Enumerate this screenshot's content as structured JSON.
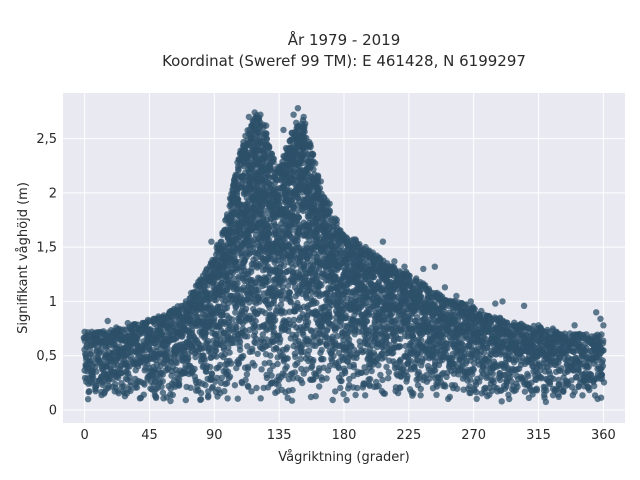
{
  "chart_data": {
    "type": "scatter",
    "title_lines": [
      "År 1979 - 2019",
      "Koordinat (Sweref 99 TM): E 461428, N 6199297"
    ],
    "xlabel": "Vågriktning (grader)",
    "ylabel": "Signifikant våghöjd (m)",
    "xlim": [
      -15,
      375
    ],
    "ylim": [
      -0.12,
      2.92
    ],
    "xticks": [
      0,
      45,
      90,
      135,
      180,
      225,
      270,
      315,
      360
    ],
    "xtick_labels": [
      "0",
      "45",
      "90",
      "135",
      "180",
      "225",
      "270",
      "315",
      "360"
    ],
    "yticks": [
      0,
      0.5,
      1,
      1.5,
      2,
      2.5
    ],
    "ytick_labels": [
      "0",
      "0,5",
      "1",
      "1,5",
      "2",
      "2,5"
    ],
    "grid": true,
    "marker_color": "#2e5069",
    "plot_background": "#e8e9f1",
    "envelope": {
      "x": [
        0,
        10,
        20,
        30,
        40,
        50,
        60,
        70,
        80,
        90,
        95,
        100,
        105,
        110,
        115,
        120,
        125,
        130,
        135,
        140,
        145,
        150,
        155,
        160,
        165,
        170,
        180,
        190,
        200,
        210,
        220,
        230,
        240,
        250,
        260,
        270,
        280,
        290,
        300,
        310,
        320,
        330,
        340,
        350,
        360
      ],
      "upper_y": [
        0.72,
        0.72,
        0.74,
        0.78,
        0.8,
        0.85,
        0.92,
        1.0,
        1.2,
        1.45,
        1.6,
        1.85,
        2.2,
        2.5,
        2.65,
        2.72,
        2.6,
        2.35,
        2.25,
        2.45,
        2.6,
        2.75,
        2.55,
        2.3,
        2.05,
        1.85,
        1.62,
        1.55,
        1.45,
        1.35,
        1.3,
        1.22,
        1.1,
        1.05,
        1.0,
        0.95,
        0.88,
        0.84,
        0.8,
        0.78,
        0.75,
        0.72,
        0.7,
        0.7,
        0.72
      ]
    },
    "outliers": [
      [
        0,
        0.72
      ],
      [
        5,
        0.72
      ],
      [
        8,
        0.7
      ],
      [
        16,
        0.82
      ],
      [
        22,
        0.76
      ],
      [
        30,
        0.8
      ],
      [
        35,
        0.79
      ],
      [
        44,
        0.83
      ],
      [
        48,
        0.84
      ],
      [
        55,
        0.87
      ],
      [
        62,
        0.93
      ],
      [
        88,
        1.55
      ],
      [
        92,
        1.52
      ],
      [
        100,
        1.72
      ],
      [
        104,
        2.1
      ],
      [
        114,
        2.7
      ],
      [
        118,
        2.74
      ],
      [
        122,
        2.72
      ],
      [
        126,
        2.62
      ],
      [
        138,
        2.58
      ],
      [
        145,
        2.72
      ],
      [
        148,
        2.78
      ],
      [
        152,
        2.7
      ],
      [
        162,
        2.15
      ],
      [
        170,
        1.9
      ],
      [
        175,
        1.75
      ],
      [
        182,
        1.58
      ],
      [
        188,
        1.57
      ],
      [
        195,
        1.5
      ],
      [
        200,
        1.45
      ],
      [
        207,
        1.55
      ],
      [
        215,
        1.37
      ],
      [
        222,
        1.32
      ],
      [
        235,
        1.3
      ],
      [
        243,
        1.32
      ],
      [
        250,
        1.13
      ],
      [
        258,
        1.05
      ],
      [
        268,
        1.0
      ],
      [
        285,
        0.98
      ],
      [
        290,
        1.0
      ],
      [
        305,
        0.96
      ],
      [
        315,
        0.78
      ],
      [
        325,
        0.75
      ],
      [
        340,
        0.78
      ],
      [
        355,
        0.9
      ],
      [
        358,
        0.84
      ],
      [
        360,
        0.78
      ]
    ]
  }
}
